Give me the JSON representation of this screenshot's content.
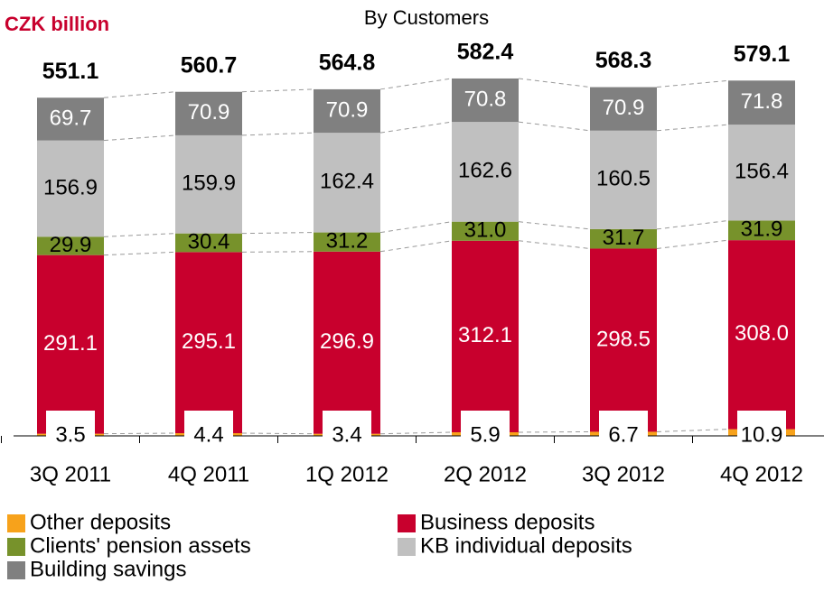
{
  "chart_data": {
    "type": "stacked-bar",
    "title": "By Customers",
    "unit_label": "CZK billion",
    "categories": [
      "3Q 2011",
      "4Q 2011",
      "1Q 2012",
      "2Q 2012",
      "3Q 2012",
      "4Q 2012"
    ],
    "totals": [
      551.1,
      560.7,
      564.8,
      582.4,
      568.3,
      579.1
    ],
    "series": [
      {
        "name": "Other deposits",
        "color": "#f7a21b",
        "values": [
          3.5,
          4.4,
          3.4,
          5.9,
          6.7,
          10.9
        ]
      },
      {
        "name": "Business deposits",
        "color": "#c8002d",
        "values": [
          291.1,
          295.1,
          296.9,
          312.1,
          298.5,
          308.0
        ],
        "value_labels": [
          "291.1",
          "295.1",
          "296.9",
          "312.1",
          "298.5",
          "308.0"
        ]
      },
      {
        "name": "Clients' pension assets",
        "color": "#77922b",
        "values": [
          29.9,
          30.4,
          31.2,
          31.0,
          31.7,
          31.9
        ],
        "value_labels": [
          "29.9",
          "30.4",
          "31.2",
          "31.0",
          "31.7",
          "31.9"
        ]
      },
      {
        "name": "KB individual deposits",
        "color": "#c0c0c0",
        "values": [
          156.9,
          159.9,
          162.4,
          162.6,
          160.5,
          156.4
        ]
      },
      {
        "name": "Building savings",
        "color": "#808080",
        "values": [
          69.7,
          70.9,
          70.9,
          70.8,
          70.9,
          71.8
        ]
      }
    ]
  }
}
